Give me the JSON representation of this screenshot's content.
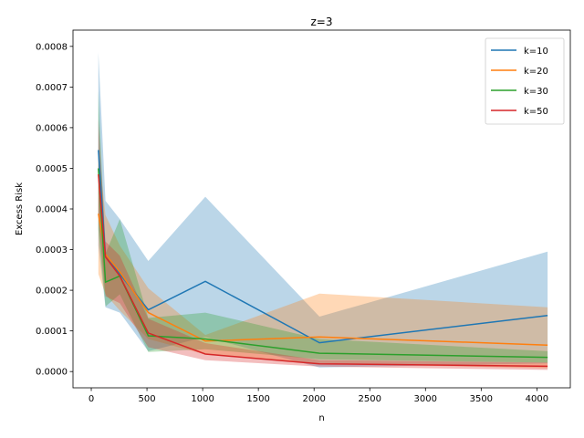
{
  "chart_data": {
    "type": "line",
    "title": "z=3",
    "xlabel": "n",
    "ylabel": "Excess Risk",
    "xlim": [
      -164,
      4300
    ],
    "ylim": [
      -4e-05,
      0.00084
    ],
    "xticks": [
      0,
      500,
      1000,
      1500,
      2000,
      2500,
      3000,
      3500,
      4000
    ],
    "yticks": [
      0.0,
      0.0001,
      0.0002,
      0.0003,
      0.0004,
      0.0005,
      0.0006,
      0.0007,
      0.0008
    ],
    "xtick_labels": [
      "0",
      "500",
      "1000",
      "1500",
      "2000",
      "2500",
      "3000",
      "3500",
      "4000"
    ],
    "ytick_labels": [
      "0.0000",
      "0.0001",
      "0.0002",
      "0.0003",
      "0.0004",
      "0.0005",
      "0.0006",
      "0.0007",
      "0.0008"
    ],
    "grid": false,
    "legend_position": "top-right",
    "x": [
      64,
      128,
      256,
      512,
      1024,
      2048,
      4096
    ],
    "series": [
      {
        "name": "k=10",
        "color": "#1f77b4",
        "values": [
          0.000545,
          0.000285,
          0.00024,
          0.000152,
          0.000222,
          7.1e-05,
          0.000138
        ],
        "lower": [
          0.00031,
          0.000158,
          0.000145,
          5e-05,
          8.5e-05,
          1e-05,
          2e-05
        ],
        "upper": [
          0.000785,
          0.00042,
          0.000375,
          0.000272,
          0.00043,
          0.000135,
          0.000295
        ]
      },
      {
        "name": "k=20",
        "color": "#ff7f0e",
        "values": [
          0.000388,
          0.000288,
          0.000245,
          0.000145,
          7.5e-05,
          8.5e-05,
          6.5e-05
        ],
        "lower": [
          0.00024,
          0.00019,
          0.00015,
          8e-05,
          4.2e-05,
          2e-05,
          8e-06
        ],
        "upper": [
          0.000545,
          0.000385,
          0.00031,
          0.000205,
          9e-05,
          0.000192,
          0.000158
        ]
      },
      {
        "name": "k=30",
        "color": "#2ca02c",
        "values": [
          0.0005,
          0.00022,
          0.000235,
          8.8e-05,
          8e-05,
          4.5e-05,
          3.5e-05
        ],
        "lower": [
          0.00035,
          0.00016,
          0.00019,
          4.8e-05,
          5.5e-05,
          3e-05,
          2.2e-05
        ],
        "upper": [
          0.00069,
          0.00029,
          0.000375,
          0.000132,
          0.000145,
          8e-05,
          5e-05
        ]
      },
      {
        "name": "k=50",
        "color": "#d62728",
        "values": [
          0.000485,
          0.000282,
          0.000235,
          9.5e-05,
          4.3e-05,
          1.9e-05,
          1.3e-05
        ],
        "lower": [
          0.00038,
          0.000185,
          0.000168,
          6e-05,
          2.8e-05,
          1.2e-05,
          4e-06
        ],
        "upper": [
          0.00062,
          0.00032,
          0.000285,
          0.00013,
          7e-05,
          2.8e-05,
          2.2e-05
        ]
      }
    ]
  }
}
